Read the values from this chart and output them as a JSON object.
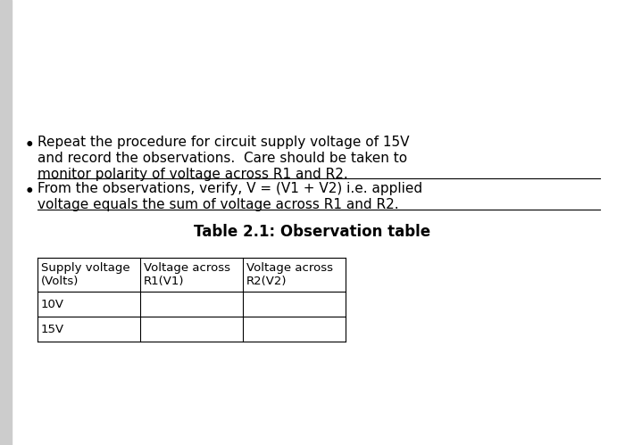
{
  "background_color": "#ffffff",
  "left_bar_color": "#cccccc",
  "bullet1_line1": "Repeat the procedure for circuit supply voltage of 15V",
  "bullet1_line2": "and record the observations.  Care should be taken to",
  "bullet1_line3": "monitor polarity of voltage across R1 and R2.",
  "bullet2_line1": "From the observations, verify, V = (V1 + V2) i.e. applied",
  "bullet2_line2": "voltage equals the sum of voltage across R1 and R2.",
  "table_title": "Table 2.1: Observation table",
  "table_headers": [
    "Supply voltage\n(Volts)",
    "Voltage across\nR1(V1)",
    "Voltage across\nR2(V2)"
  ],
  "table_rows": [
    [
      "10V",
      "",
      ""
    ],
    [
      "15V",
      "",
      ""
    ]
  ],
  "font_family": "DejaVu Sans",
  "body_fontsize": 11,
  "title_fontsize": 12
}
